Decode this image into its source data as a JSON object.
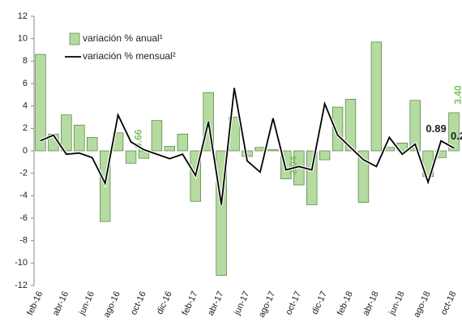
{
  "chart_data": {
    "type": "bar-line",
    "categories": [
      "feb-16",
      null,
      "abr-16",
      null,
      "jun-16",
      null,
      "ago-16",
      null,
      "oct-16",
      null,
      "dic-16",
      null,
      "feb-17",
      null,
      "abr-17",
      null,
      "jun-17",
      null,
      "ago-17",
      null,
      "oct-17",
      null,
      "dic-17",
      null,
      "feb-18",
      null,
      "abr-18",
      null,
      "jun-18",
      null,
      "ago-18",
      null,
      "oct-18"
    ],
    "series": [
      {
        "name": "variación % anual¹",
        "type": "bar",
        "color": "#b5dba0",
        "stroke": "#3a6b2a",
        "values": [
          8.6,
          1.5,
          3.2,
          2.3,
          1.2,
          -6.3,
          1.6,
          -1.1,
          -0.66,
          2.7,
          0.4,
          1.5,
          -4.5,
          5.2,
          -11.1,
          3.0,
          -0.5,
          0.3,
          0.1,
          -2.5,
          -3.04,
          -4.8,
          -0.8,
          3.9,
          4.6,
          -4.6,
          9.7,
          0.3,
          0.7,
          4.5,
          -2.3,
          -0.6,
          3.4
        ],
        "value_labels": [
          null,
          null,
          null,
          null,
          null,
          null,
          null,
          null,
          "-0.66",
          null,
          null,
          null,
          null,
          null,
          null,
          null,
          null,
          null,
          null,
          null,
          "-3.04",
          null,
          null,
          null,
          null,
          null,
          null,
          null,
          null,
          null,
          null,
          null,
          "3.40"
        ]
      },
      {
        "name": "variación % mensual²",
        "type": "line",
        "color": "#000000",
        "values": [
          0.9,
          1.4,
          -0.3,
          -0.2,
          -0.6,
          -2.9,
          3.2,
          0.8,
          0.1,
          -0.3,
          -0.7,
          -0.3,
          -2.2,
          2.6,
          -4.8,
          5.6,
          -0.9,
          -1.9,
          2.9,
          -1.7,
          -1.4,
          -1.7,
          4.2,
          1.4,
          0.3,
          -0.8,
          -1.4,
          1.2,
          -0.3,
          0.6,
          -2.8,
          0.89,
          0.25
        ],
        "value_labels": [
          null,
          null,
          null,
          null,
          null,
          null,
          null,
          null,
          null,
          null,
          null,
          null,
          null,
          null,
          null,
          null,
          null,
          null,
          null,
          null,
          null,
          null,
          null,
          null,
          null,
          null,
          null,
          null,
          null,
          null,
          null,
          "0.89",
          "0.25"
        ]
      }
    ],
    "ylim": [
      -12,
      12
    ],
    "yticks": [
      -12,
      -10,
      -8,
      -6,
      -4,
      -2,
      0,
      2,
      4,
      6,
      8,
      10,
      12
    ],
    "grid": false,
    "legend": "top-left"
  }
}
